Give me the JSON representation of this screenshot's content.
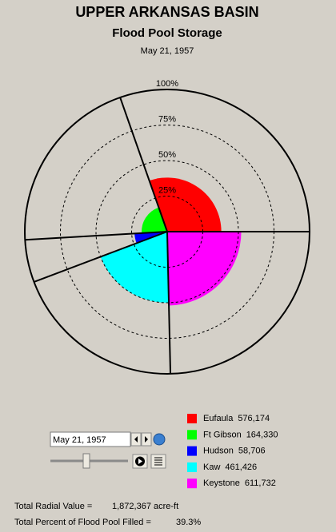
{
  "chart_data": {
    "type": "polar-area",
    "title": "UPPER ARKANSAS BASIN",
    "subtitle": "Flood Pool Storage",
    "date": "May 21, 1957",
    "categories": [
      "Eufaula",
      "Ft Gibson",
      "Hudson",
      "Kaw",
      "Keystone"
    ],
    "colors": [
      "#ff0000",
      "#00ff00",
      "#0000ff",
      "#00ffff",
      "#ff00ff"
    ],
    "values": [
      576174,
      164330,
      58706,
      461426,
      611732
    ],
    "value_labels": [
      "576,174",
      "164,330",
      "58,706",
      "461,426",
      "611,732"
    ],
    "percent_full": [
      38,
      18,
      23,
      50,
      52
    ],
    "sweep": [
      109.3,
      74,
      17.4,
      70.6,
      88.7
    ],
    "rlim": [
      0,
      100
    ],
    "rticks": [
      {
        "value": 25,
        "label": "25%"
      },
      {
        "value": 50,
        "label": "50%"
      },
      {
        "value": 75,
        "label": "75%"
      },
      {
        "value": 100,
        "label": "100%"
      }
    ]
  },
  "controls": {
    "date_input": "May 21, 1957"
  },
  "footer": {
    "total_radial_label": "Total Radial Value =",
    "total_radial": "1,872,367 acre-ft",
    "percent_filled_label": "Total Percent of Flood Pool Filled =",
    "percent_filled": "39.3%"
  }
}
